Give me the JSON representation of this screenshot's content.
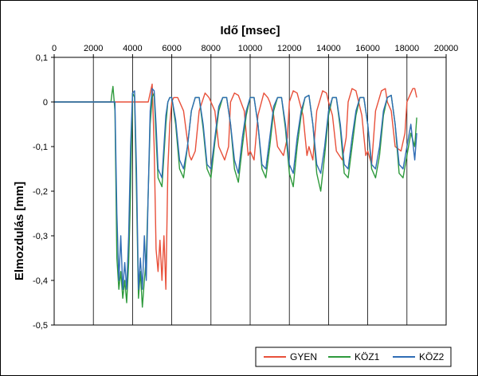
{
  "chart_data": {
    "type": "line",
    "xlabel": "Idő [msec]",
    "ylabel": "Elmozdulás [mm]",
    "x_axis_position": "top",
    "xlim": [
      0,
      20000
    ],
    "ylim": [
      -0.5,
      0.1
    ],
    "x_ticks": [
      "0",
      "2000",
      "4000",
      "6000",
      "8000",
      "10000",
      "12000",
      "14000",
      "16000",
      "18000",
      "20000"
    ],
    "y_ticks": [
      "0,1",
      "0",
      "-0,1",
      "-0,2",
      "-0,3",
      "-0,4",
      "-0,5"
    ],
    "grid": "vertical",
    "legend_position": "bottom-right",
    "series": [
      {
        "name": "GYEN",
        "color": "#e8503a",
        "x": [
          0,
          3000,
          3300,
          4000,
          4300,
          4500,
          4650,
          4800,
          4900,
          5000,
          5100,
          5200,
          5300,
          5400,
          5500,
          5600,
          5700,
          5800,
          5900,
          6000,
          6100,
          6300,
          6600,
          6900,
          7000,
          7200,
          7400,
          7700,
          7900,
          8000,
          8200,
          8400,
          8700,
          8900,
          9000,
          9200,
          9400,
          9700,
          9900,
          10000,
          10200,
          10400,
          10700,
          10900,
          11000,
          11200,
          11400,
          11700,
          11900,
          12000,
          12200,
          12400,
          12700,
          12900,
          13000,
          13200,
          13400,
          13700,
          13900,
          14000,
          14200,
          14400,
          14700,
          14900,
          15000,
          15200,
          15400,
          15700,
          15900,
          16000,
          16200,
          16400,
          16700,
          16900,
          17000,
          17200,
          17400,
          17700,
          17900,
          18000,
          18200,
          18300,
          18400,
          18500
        ],
        "y": [
          0,
          0,
          0,
          0,
          0,
          0,
          0,
          0,
          0.02,
          0.04,
          -0.1,
          -0.33,
          -0.38,
          -0.31,
          -0.4,
          -0.3,
          -0.42,
          -0.15,
          -0.05,
          0,
          0.01,
          0.01,
          -0.02,
          -0.12,
          -0.13,
          -0.11,
          -0.02,
          0.02,
          0.01,
          0,
          -0.02,
          -0.1,
          -0.13,
          -0.1,
          0,
          0.02,
          0.015,
          -0.02,
          -0.12,
          -0.11,
          -0.13,
          -0.03,
          0.02,
          0.01,
          0,
          -0.03,
          -0.1,
          -0.12,
          -0.08,
          0,
          0.025,
          0.02,
          -0.03,
          -0.12,
          -0.1,
          -0.13,
          -0.02,
          0.025,
          0.02,
          0,
          -0.03,
          -0.11,
          -0.13,
          -0.08,
          0,
          0.03,
          0.025,
          -0.03,
          -0.12,
          -0.11,
          -0.14,
          -0.02,
          0.025,
          0.03,
          0,
          -0.02,
          -0.1,
          -0.11,
          -0.07,
          0,
          0.02,
          0.03,
          0.03,
          0.01
        ]
      },
      {
        "name": "KÖZ1",
        "color": "#2e9a3c",
        "x": [
          0,
          2900,
          2950,
          3000,
          3100,
          3200,
          3300,
          3400,
          3500,
          3600,
          3700,
          3800,
          3900,
          4000,
          4100,
          4200,
          4300,
          4400,
          4500,
          4600,
          4700,
          4800,
          4900,
          5000,
          5100,
          5200,
          5300,
          5500,
          5700,
          5800,
          5900,
          6000,
          6200,
          6400,
          6600,
          6800,
          7000,
          7200,
          7400,
          7600,
          7800,
          8000,
          8200,
          8400,
          8600,
          8800,
          9000,
          9200,
          9400,
          9600,
          9800,
          10000,
          10200,
          10400,
          10600,
          10800,
          11000,
          11200,
          11400,
          11600,
          11800,
          12000,
          12200,
          12400,
          12600,
          12800,
          13000,
          13200,
          13400,
          13600,
          13800,
          14000,
          14200,
          14400,
          14600,
          14800,
          15000,
          15200,
          15400,
          15600,
          15800,
          16000,
          16200,
          16400,
          16600,
          16800,
          17000,
          17200,
          17400,
          17600,
          17800,
          18000,
          18200,
          18400,
          18500
        ],
        "y": [
          0,
          0,
          0.02,
          0.035,
          -0.02,
          -0.35,
          -0.42,
          -0.38,
          -0.44,
          -0.4,
          -0.45,
          -0.36,
          -0.2,
          0.02,
          0.01,
          -0.2,
          -0.44,
          -0.38,
          -0.46,
          -0.4,
          -0.35,
          -0.2,
          -0.05,
          0.01,
          0.02,
          -0.08,
          -0.17,
          -0.19,
          -0.05,
          0,
          0.01,
          0.01,
          -0.05,
          -0.15,
          -0.17,
          -0.1,
          -0.02,
          0.01,
          0.01,
          -0.06,
          -0.15,
          -0.17,
          -0.09,
          -0.02,
          0.01,
          0.01,
          -0.05,
          -0.15,
          -0.18,
          -0.1,
          -0.03,
          0.01,
          0.01,
          -0.05,
          -0.15,
          -0.17,
          -0.1,
          -0.02,
          0.01,
          0.01,
          -0.06,
          -0.16,
          -0.19,
          -0.1,
          -0.03,
          0.01,
          0.015,
          -0.05,
          -0.16,
          -0.2,
          -0.12,
          -0.03,
          0.01,
          0.01,
          -0.06,
          -0.16,
          -0.17,
          -0.1,
          -0.03,
          0.01,
          0.01,
          -0.05,
          -0.15,
          -0.17,
          -0.12,
          -0.03,
          0.01,
          0.015,
          -0.05,
          -0.16,
          -0.17,
          -0.12,
          -0.07,
          -0.1,
          -0.035
        ]
      },
      {
        "name": "KÖZ2",
        "color": "#2f6db5",
        "x": [
          0,
          3000,
          3100,
          3200,
          3300,
          3400,
          3500,
          3600,
          3700,
          3800,
          3900,
          4000,
          4100,
          4200,
          4300,
          4400,
          4500,
          4600,
          4700,
          4800,
          4900,
          5000,
          5100,
          5200,
          5300,
          5500,
          5700,
          5800,
          5900,
          6000,
          6200,
          6400,
          6600,
          6800,
          7000,
          7200,
          7400,
          7600,
          7800,
          8000,
          8200,
          8400,
          8600,
          8800,
          9000,
          9200,
          9400,
          9600,
          9800,
          10000,
          10200,
          10400,
          10600,
          10800,
          11000,
          11200,
          11400,
          11600,
          11800,
          12000,
          12200,
          12400,
          12600,
          12800,
          13000,
          13200,
          13400,
          13600,
          13800,
          14000,
          14200,
          14400,
          14600,
          14800,
          15000,
          15200,
          15400,
          15600,
          15800,
          16000,
          16200,
          16400,
          16600,
          16800,
          17000,
          17200,
          17400,
          17600,
          17800,
          18000,
          18200,
          18400,
          18500
        ],
        "y": [
          0,
          0,
          0,
          -0.25,
          -0.4,
          -0.3,
          -0.42,
          -0.36,
          -0.42,
          -0.3,
          -0.1,
          0.02,
          0.025,
          -0.15,
          -0.42,
          -0.35,
          -0.42,
          -0.3,
          -0.4,
          -0.2,
          -0.02,
          0.03,
          0.025,
          -0.05,
          -0.15,
          -0.17,
          -0.03,
          0,
          0.01,
          0.01,
          -0.04,
          -0.13,
          -0.15,
          -0.1,
          -0.02,
          0.01,
          0.01,
          -0.05,
          -0.14,
          -0.15,
          -0.08,
          -0.01,
          0.01,
          0.01,
          -0.05,
          -0.13,
          -0.16,
          -0.08,
          -0.02,
          0.01,
          0.01,
          -0.05,
          -0.14,
          -0.15,
          -0.08,
          -0.01,
          0.01,
          0.01,
          -0.05,
          -0.14,
          -0.16,
          -0.08,
          -0.02,
          0.01,
          0.015,
          -0.05,
          -0.14,
          -0.16,
          -0.1,
          -0.02,
          0.01,
          0.01,
          -0.05,
          -0.14,
          -0.15,
          -0.08,
          -0.02,
          0.01,
          0.01,
          -0.05,
          -0.14,
          -0.15,
          -0.1,
          -0.02,
          0.01,
          0.015,
          -0.05,
          -0.14,
          -0.15,
          -0.1,
          -0.05,
          -0.13,
          -0.07
        ]
      }
    ]
  }
}
